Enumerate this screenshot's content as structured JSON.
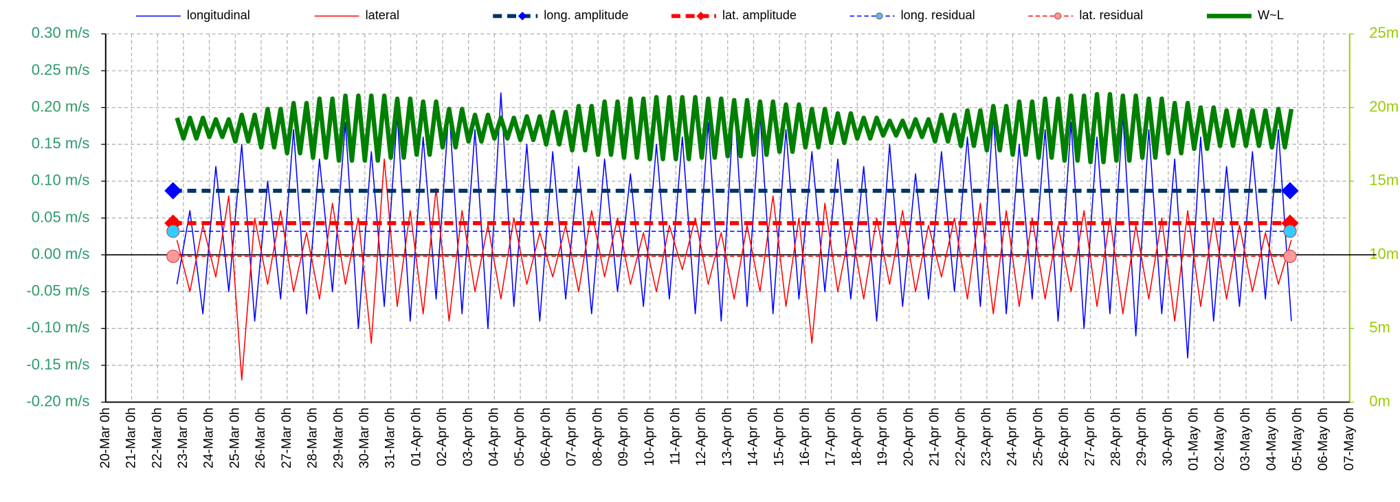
{
  "chart_data": {
    "type": "line",
    "legend": "top",
    "grid": true,
    "xlim": [
      0,
      48
    ],
    "xticks": [
      {
        "value": 0,
        "label": "20-Mar 0h"
      },
      {
        "value": 1,
        "label": "21-Mar 0h"
      },
      {
        "value": 2,
        "label": "22-Mar 0h"
      },
      {
        "value": 3,
        "label": "23-Mar 0h"
      },
      {
        "value": 4,
        "label": "24-Mar 0h"
      },
      {
        "value": 5,
        "label": "25-Mar 0h"
      },
      {
        "value": 6,
        "label": "26-Mar 0h"
      },
      {
        "value": 7,
        "label": "27-Mar 0h"
      },
      {
        "value": 8,
        "label": "28-Mar 0h"
      },
      {
        "value": 9,
        "label": "29-Mar 0h"
      },
      {
        "value": 10,
        "label": "30-Mar 0h"
      },
      {
        "value": 11,
        "label": "31-Mar 0h"
      },
      {
        "value": 12,
        "label": "01-Apr 0h"
      },
      {
        "value": 13,
        "label": "02-Apr 0h"
      },
      {
        "value": 14,
        "label": "03-Apr 0h"
      },
      {
        "value": 15,
        "label": "04-Apr 0h"
      },
      {
        "value": 16,
        "label": "05-Apr 0h"
      },
      {
        "value": 17,
        "label": "06-Apr 0h"
      },
      {
        "value": 18,
        "label": "07-Apr 0h"
      },
      {
        "value": 19,
        "label": "08-Apr 0h"
      },
      {
        "value": 20,
        "label": "09-Apr 0h"
      },
      {
        "value": 21,
        "label": "10-Apr 0h"
      },
      {
        "value": 22,
        "label": "11-Apr 0h"
      },
      {
        "value": 23,
        "label": "12-Apr 0h"
      },
      {
        "value": 24,
        "label": "13-Apr 0h"
      },
      {
        "value": 25,
        "label": "14-Apr 0h"
      },
      {
        "value": 26,
        "label": "15-Apr 0h"
      },
      {
        "value": 27,
        "label": "16-Apr 0h"
      },
      {
        "value": 28,
        "label": "17-Apr 0h"
      },
      {
        "value": 29,
        "label": "18-Apr 0h"
      },
      {
        "value": 30,
        "label": "19-Apr 0h"
      },
      {
        "value": 31,
        "label": "20-Apr 0h"
      },
      {
        "value": 32,
        "label": "21-Apr 0h"
      },
      {
        "value": 33,
        "label": "22-Apr 0h"
      },
      {
        "value": 34,
        "label": "23-Apr 0h"
      },
      {
        "value": 35,
        "label": "24-Apr 0h"
      },
      {
        "value": 36,
        "label": "25-Apr 0h"
      },
      {
        "value": 37,
        "label": "26-Apr 0h"
      },
      {
        "value": 38,
        "label": "27-Apr 0h"
      },
      {
        "value": 39,
        "label": "28-Apr 0h"
      },
      {
        "value": 40,
        "label": "29-Apr 0h"
      },
      {
        "value": 41,
        "label": "30-Apr 0h"
      },
      {
        "value": 42,
        "label": "01-May 0h"
      },
      {
        "value": 43,
        "label": "02-May 0h"
      },
      {
        "value": 44,
        "label": "03-May 0h"
      },
      {
        "value": 45,
        "label": "04-May 0h"
      },
      {
        "value": 46,
        "label": "05-May 0h"
      },
      {
        "value": 47,
        "label": "06-May 0h"
      },
      {
        "value": 48,
        "label": "07-May 0h"
      }
    ],
    "ylim": [
      -0.2,
      0.3
    ],
    "yticks": [
      {
        "value": -0.2,
        "label": "-0.20 m/s"
      },
      {
        "value": -0.15,
        "label": "-0.15 m/s"
      },
      {
        "value": -0.1,
        "label": "-0.10 m/s"
      },
      {
        "value": -0.05,
        "label": "-0.05 m/s"
      },
      {
        "value": 0,
        "label": "0.00 m/s"
      },
      {
        "value": 0.05,
        "label": "0.05 m/s"
      },
      {
        "value": 0.1,
        "label": "0.10 m/s"
      },
      {
        "value": 0.15,
        "label": "0.15 m/s"
      },
      {
        "value": 0.2,
        "label": "0.20 m/s"
      },
      {
        "value": 0.25,
        "label": "0.25 m/s"
      },
      {
        "value": 0.3,
        "label": "0.30 m/s"
      }
    ],
    "y2lim": [
      0,
      25
    ],
    "y2ticks": [
      {
        "value": 0,
        "label": "0m"
      },
      {
        "value": 5,
        "label": "5m"
      },
      {
        "value": 10,
        "label": "10m"
      },
      {
        "value": 15,
        "label": "15m"
      },
      {
        "value": 20,
        "label": "20m"
      },
      {
        "value": 25,
        "label": "25m"
      }
    ],
    "y_color": "#2e9a6a",
    "y2_color": "#99cc00",
    "x": [
      2.75,
      3.25,
      3.75,
      4.25,
      4.75,
      5.25,
      5.75,
      6.25,
      6.75,
      7.25,
      7.75,
      8.25,
      8.75,
      9.25,
      9.75,
      10.25,
      10.75,
      11.25,
      11.75,
      12.25,
      12.75,
      13.25,
      13.75,
      14.25,
      14.75,
      15.25,
      15.75,
      16.25,
      16.75,
      17.25,
      17.75,
      18.25,
      18.75,
      19.25,
      19.75,
      20.25,
      20.75,
      21.25,
      21.75,
      22.25,
      22.75,
      23.25,
      23.75,
      24.25,
      24.75,
      25.25,
      25.75,
      26.25,
      26.75,
      27.25,
      27.75,
      28.25,
      28.75,
      29.25,
      29.75,
      30.25,
      30.75,
      31.25,
      31.75,
      32.25,
      32.75,
      33.25,
      33.75,
      34.25,
      34.75,
      35.25,
      35.75,
      36.25,
      36.75,
      37.25,
      37.75,
      38.25,
      38.75,
      39.25,
      39.75,
      40.25,
      40.75,
      41.25,
      41.75,
      42.25,
      42.75,
      43.25,
      43.75,
      44.25,
      44.75,
      45.25,
      45.75
    ],
    "series": [
      {
        "name": "longitudinal",
        "color": "#0000ff",
        "line_style": "solid",
        "marker": "none",
        "values": [
          -0.04,
          0.06,
          -0.08,
          0.12,
          -0.05,
          0.15,
          -0.09,
          0.1,
          -0.06,
          0.17,
          -0.08,
          0.13,
          -0.05,
          0.18,
          -0.1,
          0.14,
          -0.07,
          0.19,
          -0.09,
          0.16,
          -0.06,
          0.2,
          -0.08,
          0.17,
          -0.1,
          0.22,
          -0.07,
          0.15,
          -0.09,
          0.14,
          -0.06,
          0.12,
          -0.08,
          0.13,
          -0.05,
          0.11,
          -0.07,
          0.15,
          -0.06,
          0.16,
          -0.08,
          0.18,
          -0.09,
          0.21,
          -0.07,
          0.19,
          -0.08,
          0.17,
          -0.06,
          0.14,
          -0.05,
          0.13,
          -0.06,
          0.12,
          -0.09,
          0.15,
          -0.07,
          0.11,
          -0.06,
          0.14,
          -0.05,
          0.16,
          -0.07,
          0.19,
          -0.08,
          0.15,
          -0.06,
          0.17,
          -0.09,
          0.18,
          -0.1,
          0.16,
          -0.08,
          0.19,
          -0.11,
          0.17,
          -0.08,
          0.13,
          -0.14,
          0.16,
          -0.09,
          0.12,
          -0.07,
          0.14,
          -0.06,
          0.17,
          -0.09
        ]
      },
      {
        "name": "lateral",
        "color": "#ff0000",
        "line_style": "solid",
        "marker": "none",
        "values": [
          0.02,
          -0.05,
          0.04,
          -0.03,
          0.08,
          -0.17,
          0.05,
          -0.04,
          0.06,
          -0.05,
          0.03,
          -0.06,
          0.07,
          -0.04,
          0.05,
          -0.12,
          0.13,
          -0.07,
          0.06,
          -0.08,
          0.09,
          -0.09,
          0.06,
          -0.05,
          0.04,
          -0.06,
          0.05,
          -0.04,
          0.03,
          -0.03,
          0.04,
          -0.05,
          0.06,
          -0.03,
          0.05,
          -0.04,
          0.03,
          -0.05,
          0.04,
          -0.02,
          0.05,
          -0.04,
          0.03,
          -0.06,
          0.04,
          -0.05,
          0.08,
          -0.07,
          0.05,
          -0.12,
          0.07,
          -0.05,
          0.04,
          -0.06,
          0.05,
          -0.04,
          0.06,
          -0.05,
          0.04,
          -0.03,
          0.05,
          -0.06,
          0.07,
          -0.08,
          0.06,
          -0.07,
          0.05,
          -0.06,
          0.04,
          -0.05,
          0.06,
          -0.07,
          0.05,
          -0.08,
          0.04,
          -0.06,
          0.05,
          -0.09,
          0.06,
          -0.07,
          0.05,
          -0.06,
          0.04,
          -0.05,
          0.03,
          -0.04,
          0.02
        ]
      },
      {
        "name": "long. amplitude",
        "color": "#003366",
        "line_style": "bold-dashed",
        "marker": "diamond",
        "marker_color": "#0000ff",
        "x": [
          2.6,
          45.7
        ],
        "values": [
          0.087,
          0.087
        ]
      },
      {
        "name": "lat. amplitude",
        "color": "#ff0000",
        "line_style": "bold-dashed",
        "marker": "diamond",
        "marker_color": "#ff0000",
        "x": [
          2.6,
          45.7
        ],
        "values": [
          0.043,
          0.043
        ]
      },
      {
        "name": "long. residual",
        "color": "#0000ff",
        "line_style": "dashed",
        "marker": "circle",
        "marker_color": "#33ccff",
        "x": [
          2.6,
          45.7
        ],
        "values": [
          0.032,
          0.032
        ]
      },
      {
        "name": "lat. residual",
        "color": "#ff0000",
        "line_style": "dashed",
        "marker": "circle",
        "marker_color": "#ff9999",
        "x": [
          2.6,
          45.7
        ],
        "values": [
          -0.002,
          -0.002
        ]
      },
      {
        "name": "W~L",
        "color": "#008000",
        "line_style": "bold",
        "marker": "none",
        "axis": "y2",
        "x": [
          2.75,
          3,
          3.25,
          3.5,
          3.75,
          4,
          4.25,
          4.5,
          4.75,
          5,
          5.25,
          5.5,
          5.75,
          6,
          6.25,
          6.5,
          6.75,
          7,
          7.25,
          7.5,
          7.75,
          8,
          8.25,
          8.5,
          8.75,
          9,
          9.25,
          9.5,
          9.75,
          10,
          10.25,
          10.5,
          10.75,
          11,
          11.25,
          11.5,
          11.75,
          12,
          12.25,
          12.5,
          12.75,
          13,
          13.25,
          13.5,
          13.75,
          14,
          14.25,
          14.5,
          14.75,
          15,
          15.25,
          15.5,
          15.75,
          16,
          16.25,
          16.5,
          16.75,
          17,
          17.25,
          17.5,
          17.75,
          18,
          18.25,
          18.5,
          18.75,
          19,
          19.25,
          19.5,
          19.75,
          20,
          20.25,
          20.5,
          20.75,
          21,
          21.25,
          21.5,
          21.75,
          22,
          22.25,
          22.5,
          22.75,
          23,
          23.25,
          23.5,
          23.75,
          24,
          24.25,
          24.5,
          24.75,
          25,
          25.25,
          25.5,
          25.75,
          26,
          26.25,
          26.5,
          26.75,
          27,
          27.25,
          27.5,
          27.75,
          28,
          28.25,
          28.5,
          28.75,
          29,
          29.25,
          29.5,
          29.75,
          30,
          30.25,
          30.5,
          30.75,
          31,
          31.25,
          31.5,
          31.75,
          32,
          32.25,
          32.5,
          32.75,
          33,
          33.25,
          33.5,
          33.75,
          34,
          34.25,
          34.5,
          34.75,
          35,
          35.25,
          35.5,
          35.75,
          36,
          36.25,
          36.5,
          36.75,
          37,
          37.25,
          37.5,
          37.75,
          38,
          38.25,
          38.5,
          38.75,
          39,
          39.25,
          39.5,
          39.75,
          40,
          40.25,
          40.5,
          40.75,
          41,
          41.25,
          41.5,
          41.75,
          42,
          42.25,
          42.5,
          42.75,
          43,
          43.25,
          43.5,
          43.75,
          44,
          44.25,
          44.5,
          44.75,
          45,
          45.25,
          45.5,
          45.75
        ],
        "values": [
          19.3,
          17.9,
          19.3,
          17.9,
          19.3,
          18,
          19.2,
          18,
          19.2,
          17.7,
          19.5,
          17.7,
          19.5,
          17.3,
          19.9,
          17.3,
          19.9,
          16.9,
          20.3,
          16.9,
          20.3,
          16.6,
          20.6,
          16.6,
          20.6,
          16.4,
          20.8,
          16.4,
          20.8,
          16.4,
          20.8,
          16.4,
          20.8,
          16.6,
          20.6,
          16.6,
          20.6,
          16.8,
          20.4,
          16.8,
          20.4,
          17.3,
          19.9,
          17.3,
          19.9,
          17.7,
          19.5,
          17.7,
          19.5,
          17.9,
          19.3,
          17.9,
          19.3,
          17.8,
          19.4,
          17.8,
          19.4,
          17.5,
          19.7,
          17.5,
          19.7,
          17.1,
          20.1,
          17.1,
          20.1,
          16.8,
          20.4,
          16.8,
          20.4,
          16.6,
          20.6,
          16.6,
          20.6,
          16.5,
          20.7,
          16.5,
          20.7,
          16.5,
          20.7,
          16.5,
          20.7,
          16.6,
          20.6,
          16.6,
          20.6,
          16.7,
          20.5,
          16.7,
          20.5,
          16.8,
          20.4,
          16.8,
          20.4,
          17,
          20.2,
          17,
          20.2,
          17.3,
          19.9,
          17.3,
          19.9,
          17.6,
          19.6,
          17.6,
          19.6,
          17.9,
          19.3,
          17.9,
          19.3,
          18.1,
          19.1,
          18.1,
          19.1,
          18,
          19.2,
          18,
          19.2,
          17.7,
          19.5,
          17.7,
          19.5,
          17.4,
          19.8,
          17.4,
          19.8,
          17.1,
          20.1,
          17.1,
          20.1,
          16.8,
          20.4,
          16.8,
          20.4,
          16.6,
          20.6,
          16.6,
          20.6,
          16.4,
          20.8,
          16.4,
          20.8,
          16.3,
          20.9,
          16.3,
          20.9,
          16.4,
          20.8,
          16.4,
          20.8,
          16.6,
          20.6,
          16.6,
          20.6,
          16.9,
          20.3,
          16.9,
          20.3,
          17.2,
          20,
          17.2,
          20,
          17.4,
          19.8,
          17.4,
          19.8,
          17.4,
          19.8,
          17.4,
          19.8,
          17.3,
          19.9,
          17.3,
          19.9
        ]
      }
    ]
  }
}
